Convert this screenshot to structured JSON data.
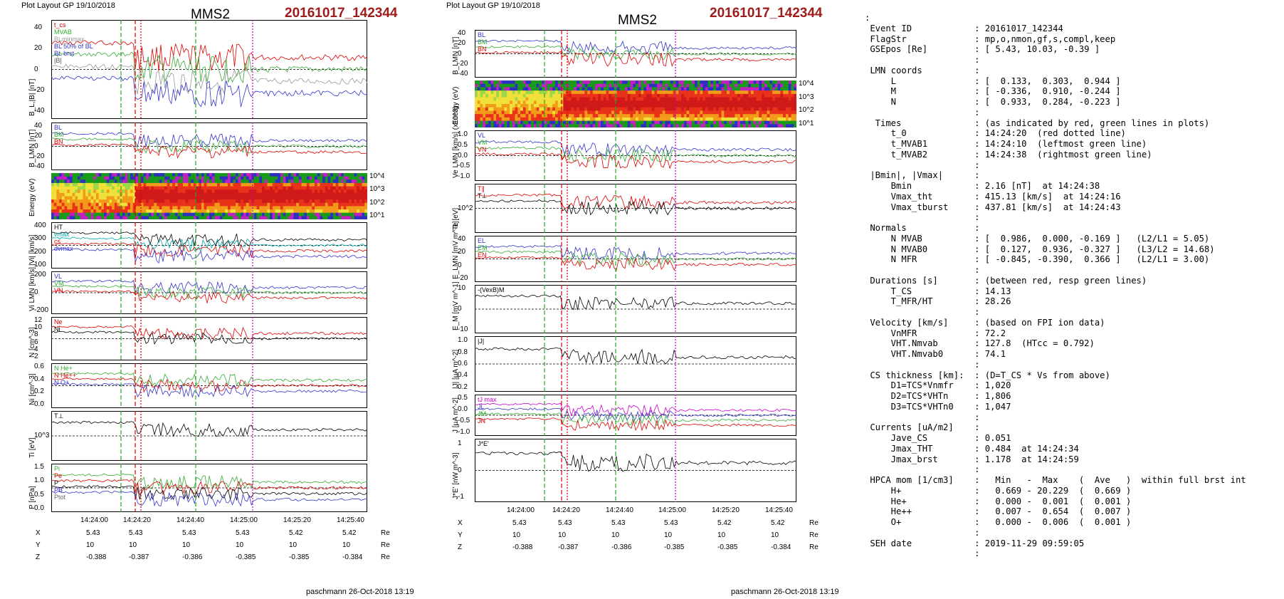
{
  "left": {
    "header": "Plot Layout GP 19/10/2018",
    "title": "MMS2",
    "event": "20161017_142344",
    "credit": "paschmann 26-Oct-2018 13:19",
    "time_ticks": [
      "14:24:00",
      "14:24:20",
      "14:24:40",
      "14:25:00",
      "14:25:20",
      "14:25:40"
    ],
    "panels": [
      {
        "ylabel": "B_L,|B| [nT]",
        "ticks": [
          "40",
          "20",
          "0",
          "-20",
          "-40"
        ],
        "legend": [
          "t_cs",
          "MVAB",
          "BLminmax",
          "BL 50% of BL",
          "BL brst",
          "|B|"
        ],
        "legend_colors": [
          "#d00",
          "#3a3",
          "#999",
          "#33c",
          "#33c",
          "#555"
        ]
      },
      {
        "ylabel": "B_LMN [nT]",
        "ticks": [
          "40",
          "20",
          "0",
          "-20",
          "-40"
        ],
        "legend": [
          "BL",
          "BM",
          "BN"
        ],
        "legend_colors": [
          "#33c",
          "#3a3",
          "#d00"
        ]
      },
      {
        "ylabel": "Energy (eV)",
        "ticks": [
          "10^4",
          "10^3",
          "10^2",
          "10^1"
        ],
        "legend": [],
        "legend_colors": []
      },
      {
        "ylabel": "|Vi| [km/s]",
        "ticks": [
          "400",
          "300",
          "200",
          "100"
        ],
        "legend": [
          "HT",
          "vmax",
          "cs",
          "dvmax"
        ],
        "legend_colors": [
          "#000",
          "#0aa",
          "#d00",
          "#33c"
        ]
      },
      {
        "ylabel": "Vi LMN [km/s]",
        "ticks": [
          "200",
          "0",
          "-200"
        ],
        "legend": [
          "VL",
          "VM",
          "VN"
        ],
        "legend_colors": [
          "#33c",
          "#3a3",
          "#d00"
        ]
      },
      {
        "ylabel": "N [cm^-3]",
        "ticks": [
          "12",
          "10",
          "8",
          "6",
          "4",
          "2"
        ],
        "legend": [
          "Ne",
          "Ni"
        ],
        "legend_colors": [
          "#d00",
          "#000"
        ]
      },
      {
        "ylabel": "Ni [cm^-3]",
        "ticks": [
          "0.6",
          "0.4",
          "0.2",
          "0.0"
        ],
        "legend": [
          "N He+",
          "N He++",
          "N O+"
        ],
        "legend_colors": [
          "#3a3",
          "#d00",
          "#33c"
        ]
      },
      {
        "ylabel": "Ti [eV]",
        "ticks": [
          "10^3"
        ],
        "legend": [
          "T⊥"
        ],
        "legend_colors": [
          "#000"
        ]
      },
      {
        "ylabel": "P [nPa]",
        "ticks": [
          "1.5",
          "1.0",
          "0.5",
          "0.0"
        ],
        "legend": [
          "Pi",
          "Pe",
          "P",
          "PB",
          "Ptot"
        ],
        "legend_colors": [
          "#3a3",
          "#d00",
          "#000",
          "#33c",
          "#666"
        ]
      }
    ],
    "position_rows": [
      {
        "label": "X",
        "values": [
          "5.43",
          "5.43",
          "5.43",
          "5.43",
          "5.42",
          "5.42"
        ],
        "unit": "Re"
      },
      {
        "label": "Y",
        "values": [
          "10",
          "10",
          "10",
          "10",
          "10",
          "10"
        ],
        "unit": "Re"
      },
      {
        "label": "Z",
        "values": [
          "-0.388",
          "-0.387",
          "-0.386",
          "-0.385",
          "-0.385",
          "-0.384"
        ],
        "unit": "Re"
      }
    ]
  },
  "middle": {
    "header": "Plot Layout GP 19/10/2018",
    "title": "MMS2",
    "event": "20161017_142344",
    "credit": "paschmann 26-Oct-2018 13:19",
    "time_ticks": [
      "14:24:00",
      "14:24:20",
      "14:24:40",
      "14:25:00",
      "14:25:20",
      "14:25:40"
    ],
    "panels": [
      {
        "ylabel": "B_LMN [nT]",
        "ticks": [
          "40",
          "20",
          "0",
          "-20",
          "-40"
        ],
        "legend": [
          "BL",
          "BM",
          "BN"
        ],
        "legend_colors": [
          "#33c",
          "#3a3",
          "#d00"
        ]
      },
      {
        "ylabel": "Energy (eV)",
        "ticks": [
          "10^4",
          "10^3",
          "10^2",
          "10^1"
        ],
        "legend": [],
        "legend_colors": []
      },
      {
        "ylabel": "Ve LMN [km/s] (x10^3)",
        "ticks": [
          "1.0",
          "0.5",
          "0.0",
          "-0.5",
          "-1.0"
        ],
        "legend": [
          "VL",
          "VM",
          "VN"
        ],
        "legend_colors": [
          "#33c",
          "#3a3",
          "#d00"
        ]
      },
      {
        "ylabel": "Te [eV]",
        "ticks": [
          "10^2"
        ],
        "legend": [
          "T∥",
          "T⊥"
        ],
        "legend_colors": [
          "#d00",
          "#000"
        ]
      },
      {
        "ylabel": "E_LMN [mV m^-1]",
        "ticks": [
          "40",
          "20",
          "0",
          "-20"
        ],
        "legend": [
          "EL",
          "EM",
          "EN"
        ],
        "legend_colors": [
          "#33c",
          "#3a3",
          "#d00"
        ]
      },
      {
        "ylabel": "E_M [mV m^-1]",
        "ticks": [
          "10",
          "0",
          "-10"
        ],
        "legend": [
          "-(VexB)M"
        ],
        "legend_colors": [
          "#000"
        ]
      },
      {
        "ylabel": "|J| [µA m^-2]",
        "ticks": [
          "1.0",
          "0.8",
          "0.6",
          "0.4",
          "0.2"
        ],
        "legend": [
          "|J|"
        ],
        "legend_colors": [
          "#000"
        ]
      },
      {
        "ylabel": "J [µA m^-2]",
        "ticks": [
          "0.5",
          "0.0",
          "-0.5",
          "-1.0"
        ],
        "legend": [
          "tJ max",
          "JL",
          "JM",
          "JN"
        ],
        "legend_colors": [
          "#c0c",
          "#33c",
          "#3a3",
          "#d00"
        ]
      },
      {
        "ylabel": "J*E' [nW m^-3]",
        "ticks": [
          "1",
          "0",
          "-1"
        ],
        "legend": [
          "J*E'"
        ],
        "legend_colors": [
          "#000"
        ]
      }
    ],
    "position_rows": [
      {
        "label": "X",
        "values": [
          "5.43",
          "5.43",
          "5.43",
          "5.43",
          "5.42",
          "5.42"
        ],
        "unit": "Re"
      },
      {
        "label": "Y",
        "values": [
          "10",
          "10",
          "10",
          "10",
          "10",
          "10"
        ],
        "unit": "Re"
      },
      {
        "label": "Z",
        "values": [
          "-0.388",
          "-0.387",
          "-0.386",
          "-0.385",
          "-0.385",
          "-0.384"
        ],
        "unit": "Re"
      }
    ]
  },
  "info_lines": [
    ":",
    " Event ID            : 20161017_142344",
    " FlagStr             : mp,o,nmon,gf,s,compl,keep",
    " GSEpos [Re]         : [ 5.43, 10.03, -0.39 ]",
    "                     :",
    " LMN coords          :",
    "     L               : [  0.133,  0.303,  0.944 ]",
    "     M               : [ -0.336,  0.910, -0.244 ]",
    "     N               : [  0.933,  0.284, -0.223 ]",
    "                     :",
    "  Times              : (as indicated by red, green lines in plots)",
    "     t_0             : 14:24:20  (red dotted line)",
    "     t_MVAB1         : 14:24:10  (leftmost green line)",
    "     t_MVAB2         : 14:24:38  (rightmost green line)",
    "                     :",
    " |Bmin|, |Vmax|      :",
    "     Bmin            : 2.16 [nT]  at 14:24:38",
    "     Vmax_tht        : 415.13 [km/s]  at 14:24:16",
    "     Vmax_tburst     : 437.81 [km/s]  at 14:24:43",
    "                     :",
    " Normals             :",
    "     N MVAB          : [  0.986,  0.000, -0.169 ]   (L2/L1 = 5.05)",
    "     N MVAB0         : [  0.127,  0.936, -0.327 ]   (L3/L2 = 14.68)",
    "     N MFR           : [ -0.845, -0.390,  0.366 ]   (L2/L1 = 3.00)",
    "                     :",
    " Durations [s]       : (between red, resp green lines)",
    "     T_CS            : 14.13",
    "     T_MFR/HT        : 28.26",
    "                     :",
    " Velocity [km/s]     : (based on FPI ion data)",
    "     VnMFR           : 72.2",
    "     VHT.Nmvab       : 127.8  (HTcc = 0.792)",
    "     VHT.Nmvab0      : 74.1",
    "                     :",
    " CS thickness [km]:  : (D=T_CS * Vs from above)",
    "     D1=TCS*Vnmfr    : 1,020",
    "     D2=TCS*VHTn     : 1,806",
    "     D3=TCS*VHTn0    : 1,047",
    "                     :",
    " Currents [uA/m2]    :",
    "     Jave_CS         : 0.051",
    "     Jmax_THT        : 0.484  at 14:24:34",
    "     Jmax_brst       : 1.178  at 14:24:59",
    "                     :",
    " HPCA mom [1/cm3]    :   Min   -  Max    (  Ave   )  within full brst int",
    "     H+              :   0.669 - 20.229  (  0.669 )",
    "     He+             :   0.000 -  0.001  (  0.001 )",
    "     He++            :   0.007 -  0.654  (  0.007 )",
    "     O+              :   0.000 -  0.006  (  0.001 )",
    "                     :",
    " SEH date            : 2019-11-29 09:59:05",
    "                     :"
  ],
  "chart_data": [
    {
      "type": "line",
      "title": "MMS2",
      "subtitle": "20161017_142344",
      "x": [
        "14:23:50",
        "14:24:00",
        "14:24:10",
        "14:24:15",
        "14:24:20",
        "14:24:25",
        "14:24:30",
        "14:24:35",
        "14:24:40",
        "14:24:45",
        "14:24:50",
        "14:24:55",
        "14:25:00",
        "14:25:05",
        "14:25:10",
        "14:25:20",
        "14:25:30",
        "14:25:40"
      ],
      "series": [
        {
          "name": "BL",
          "panel": "B_L,|B| [nT]",
          "values": [
            38,
            39,
            40,
            41,
            -10,
            -22,
            -26,
            -22,
            -32,
            -28,
            -24,
            -22,
            -22,
            10,
            35,
            18,
            14,
            13
          ]
        },
        {
          "name": "|B|",
          "panel": "B_L,|B| [nT]",
          "values": [
            40,
            41,
            42,
            42,
            20,
            28,
            26,
            25,
            28,
            22,
            25,
            28,
            24,
            30,
            38,
            22,
            18,
            16
          ]
        },
        {
          "name": "Ni",
          "panel": "N [cm^-3]",
          "values": [
            0.5,
            0.5,
            0.6,
            0.6,
            3,
            9,
            8.5,
            8,
            9,
            8,
            9,
            8.5,
            8,
            8.5,
            9,
            8.5,
            10,
            11
          ]
        },
        {
          "name": "N He++",
          "panel": "Ni [cm^-3]",
          "values": [
            0,
            0,
            0,
            0,
            0.05,
            0.25,
            0.4,
            0.42,
            0.36,
            0.32,
            0.34,
            0.42,
            0.5,
            0.56,
            0.62,
            0.64,
            0.65,
            0.65
          ]
        }
      ],
      "xlim": [
        "14:23:50",
        "14:25:45"
      ],
      "markers": {
        "t_0": "14:24:20",
        "t_MVAB1": "14:24:10",
        "t_MVAB2": "14:24:38"
      }
    },
    {
      "type": "line",
      "title": "MMS2",
      "subtitle": "20161017_142344",
      "x": [
        "14:23:50",
        "14:24:00",
        "14:24:10",
        "14:24:20",
        "14:24:30",
        "14:24:40",
        "14:24:50",
        "14:25:00",
        "14:25:10",
        "14:25:20",
        "14:25:30",
        "14:25:40"
      ],
      "series": [
        {
          "name": "|J|",
          "panel": "|J| [µA m^-2]",
          "values": [
            0.02,
            0.02,
            0.03,
            0.08,
            0.25,
            0.3,
            0.35,
            0.9,
            0.1,
            0.05,
            0.05,
            0.05
          ]
        },
        {
          "name": "Te",
          "panel": "Te [eV]",
          "values": [
            900,
            800,
            700,
            250,
            200,
            300,
            280,
            320,
            120,
            110,
            110,
            110
          ]
        }
      ],
      "xlim": [
        "14:23:50",
        "14:25:45"
      ],
      "markers": {
        "t_0": "14:24:20",
        "t_MVAB1": "14:24:10",
        "t_MVAB2": "14:24:38",
        "jmax_brst": "14:24:59"
      }
    }
  ]
}
